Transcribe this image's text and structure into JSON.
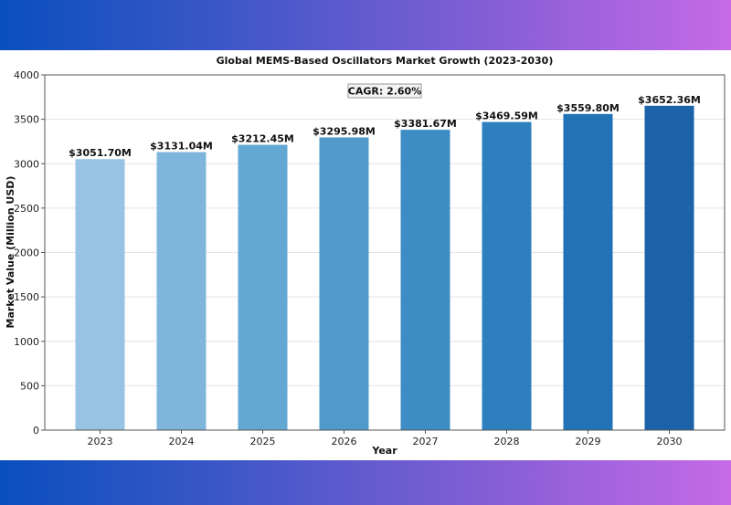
{
  "chart_data": {
    "type": "bar",
    "title": "Global MEMS-Based Oscillators Market Growth (2023-2030)",
    "xlabel": "Year",
    "ylabel": "Market Value (Million USD)",
    "categories": [
      "2023",
      "2024",
      "2025",
      "2026",
      "2027",
      "2028",
      "2029",
      "2030"
    ],
    "values": [
      3051.7,
      3131.04,
      3212.45,
      3295.98,
      3381.67,
      3469.59,
      3559.8,
      3652.36
    ],
    "data_labels": [
      "$3051.70M",
      "$3131.04M",
      "$3212.45M",
      "$3295.98M",
      "$3381.67M",
      "$3469.59M",
      "$3559.80M",
      "$3652.36M"
    ],
    "ylim": [
      0,
      4000
    ],
    "yticks": [
      "0",
      "500",
      "1000",
      "1500",
      "2000",
      "2500",
      "3000",
      "3500",
      "4000"
    ],
    "annotation": "CAGR: 2.60%",
    "grid": "horizontal",
    "bar_colors": [
      "#97c4e2",
      "#7db6da",
      "#63a7d3",
      "#4f9acb",
      "#3d8cc4",
      "#2d7fbe",
      "#2272b6",
      "#1b62a8"
    ],
    "grid_color": "#e4e4e4",
    "axis_color": "#555555"
  }
}
